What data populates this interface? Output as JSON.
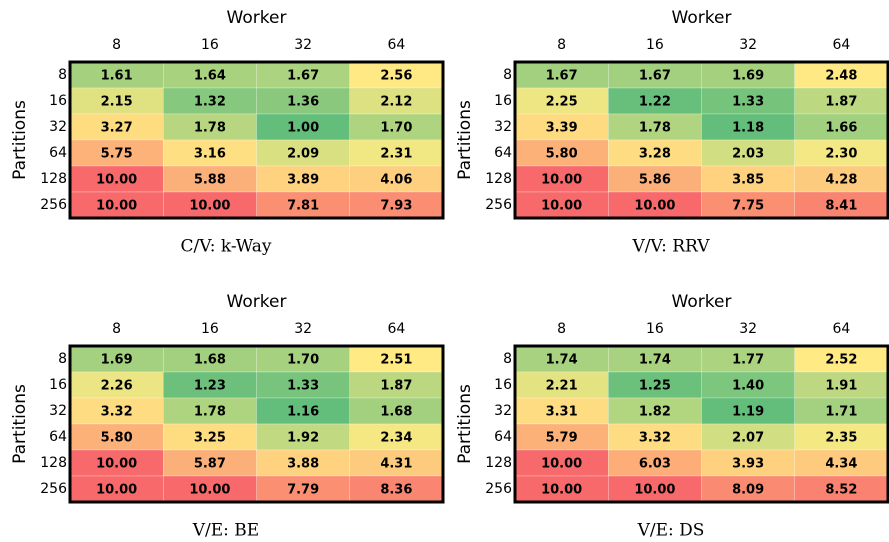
{
  "chart_data": [
    {
      "type": "heatmap",
      "x_label": "Worker",
      "y_label": "Partitions",
      "caption": "C/V: k-Way",
      "columns": [
        8,
        16,
        32,
        64
      ],
      "rows": [
        8,
        16,
        32,
        64,
        128,
        256
      ],
      "values": [
        [
          1.61,
          1.64,
          1.67,
          2.56
        ],
        [
          2.15,
          1.32,
          1.36,
          2.12
        ],
        [
          3.27,
          1.78,
          1.0,
          1.7
        ],
        [
          5.75,
          3.16,
          2.09,
          2.31
        ],
        [
          10,
          5.88,
          3.89,
          4.06
        ],
        [
          10,
          10,
          7.81,
          7.93
        ]
      ],
      "value_labels": [
        [
          "1.61",
          "1.64",
          "1.67",
          "2.56"
        ],
        [
          "2.15",
          "1.32",
          "1.36",
          "2.12"
        ],
        [
          "3.27",
          "1.78",
          "1.00",
          "1.70"
        ],
        [
          "5.75",
          "3.16",
          "2.09",
          "2.31"
        ],
        [
          "10.00",
          "5.88",
          "3.89",
          "4.06"
        ],
        [
          "10.00",
          "10.00",
          "7.81",
          "7.93"
        ]
      ],
      "colors": {
        "low": "#63be7b",
        "mid": "#ffeb84",
        "high": "#f8696b"
      }
    },
    {
      "type": "heatmap",
      "x_label": "Worker",
      "y_label": "Partitions",
      "caption": "V/V: RRV",
      "columns": [
        8,
        16,
        32,
        64
      ],
      "rows": [
        8,
        16,
        32,
        64,
        128,
        256
      ],
      "values": [
        [
          1.67,
          1.67,
          1.69,
          2.48
        ],
        [
          2.25,
          1.22,
          1.33,
          1.87
        ],
        [
          3.39,
          1.78,
          1.18,
          1.66
        ],
        [
          5.8,
          3.28,
          2.03,
          2.3
        ],
        [
          10,
          5.86,
          3.85,
          4.28
        ],
        [
          10,
          10,
          7.75,
          8.41
        ]
      ],
      "value_labels": [
        [
          "1.67",
          "1.67",
          "1.69",
          "2.48"
        ],
        [
          "2.25",
          "1.22",
          "1.33",
          "1.87"
        ],
        [
          "3.39",
          "1.78",
          "1.18",
          "1.66"
        ],
        [
          "5.80",
          "3.28",
          "2.03",
          "2.30"
        ],
        [
          "10.00",
          "5.86",
          "3.85",
          "4.28"
        ],
        [
          "10.00",
          "10.00",
          "7.75",
          "8.41"
        ]
      ],
      "colors": {
        "low": "#63be7b",
        "mid": "#ffeb84",
        "high": "#f8696b"
      }
    },
    {
      "type": "heatmap",
      "x_label": "Worker",
      "y_label": "Partitions",
      "caption": "V/E: BE",
      "columns": [
        8,
        16,
        32,
        64
      ],
      "rows": [
        8,
        16,
        32,
        64,
        128,
        256
      ],
      "values": [
        [
          1.69,
          1.68,
          1.7,
          2.51
        ],
        [
          2.26,
          1.23,
          1.33,
          1.87
        ],
        [
          3.32,
          1.78,
          1.16,
          1.68
        ],
        [
          5.8,
          3.25,
          1.92,
          2.34
        ],
        [
          10,
          5.87,
          3.88,
          4.31
        ],
        [
          10,
          10,
          7.79,
          8.36
        ]
      ],
      "value_labels": [
        [
          "1.69",
          "1.68",
          "1.70",
          "2.51"
        ],
        [
          "2.26",
          "1.23",
          "1.33",
          "1.87"
        ],
        [
          "3.32",
          "1.78",
          "1.16",
          "1.68"
        ],
        [
          "5.80",
          "3.25",
          "1.92",
          "2.34"
        ],
        [
          "10.00",
          "5.87",
          "3.88",
          "4.31"
        ],
        [
          "10.00",
          "10.00",
          "7.79",
          "8.36"
        ]
      ],
      "colors": {
        "low": "#63be7b",
        "mid": "#ffeb84",
        "high": "#f8696b"
      }
    },
    {
      "type": "heatmap",
      "x_label": "Worker",
      "y_label": "Partitions",
      "caption": "V/E: DS",
      "columns": [
        8,
        16,
        32,
        64
      ],
      "rows": [
        8,
        16,
        32,
        64,
        128,
        256
      ],
      "values": [
        [
          1.74,
          1.74,
          1.77,
          2.52
        ],
        [
          2.21,
          1.25,
          1.4,
          1.91
        ],
        [
          3.31,
          1.82,
          1.19,
          1.71
        ],
        [
          5.79,
          3.32,
          2.07,
          2.35
        ],
        [
          10,
          6.03,
          3.93,
          4.34
        ],
        [
          10,
          10,
          8.09,
          8.52
        ]
      ],
      "value_labels": [
        [
          "1.74",
          "1.74",
          "1.77",
          "2.52"
        ],
        [
          "2.21",
          "1.25",
          "1.40",
          "1.91"
        ],
        [
          "3.31",
          "1.82",
          "1.19",
          "1.71"
        ],
        [
          "5.79",
          "3.32",
          "2.07",
          "2.35"
        ],
        [
          "10.00",
          "6.03",
          "3.93",
          "4.34"
        ],
        [
          "10.00",
          "10.00",
          "8.09",
          "8.52"
        ]
      ],
      "colors": {
        "low": "#63be7b",
        "mid": "#ffeb84",
        "high": "#f8696b"
      }
    }
  ]
}
